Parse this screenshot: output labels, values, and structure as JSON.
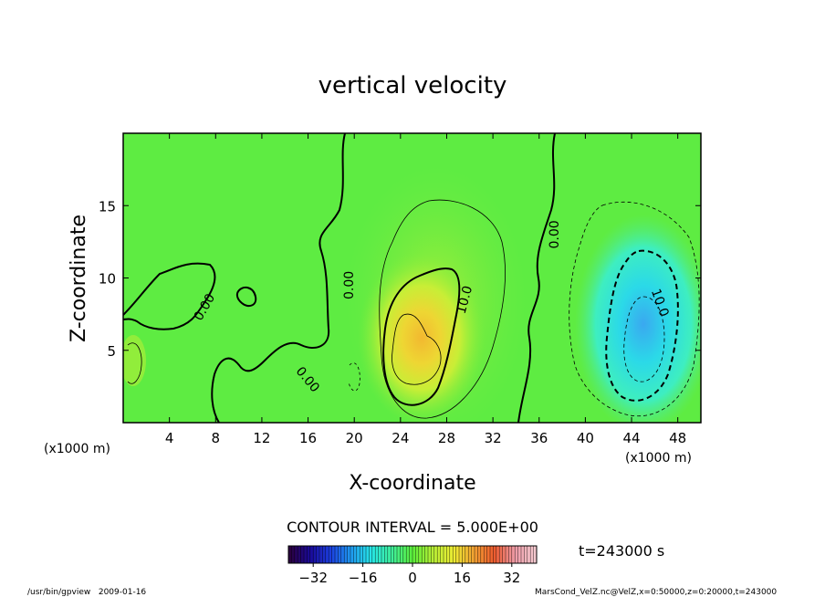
{
  "chart_data": {
    "type": "heatmap",
    "title": "vertical velocity",
    "xlabel": "X-coordinate",
    "ylabel": "Z-coordinate",
    "x_unit_left": "(x1000 m)",
    "x_unit_right": "(x1000 m)",
    "xlim": [
      0,
      50
    ],
    "ylim": [
      0,
      20
    ],
    "x_ticks": [
      4,
      8,
      12,
      16,
      20,
      24,
      28,
      32,
      36,
      40,
      44,
      48
    ],
    "y_ticks": [
      5,
      10,
      15
    ],
    "contour_interval_text": "CONTOUR INTERVAL = 5.000E+00",
    "time_text": "t=243000 s",
    "colorbar": {
      "range": [
        -40,
        40
      ],
      "ticks": [
        -32,
        -16,
        0,
        16,
        32
      ],
      "colors": [
        "#2a003f",
        "#1a0a9a",
        "#1b3fe0",
        "#1f9af0",
        "#27e7e6",
        "#3fef9a",
        "#5bee3a",
        "#b7ee35",
        "#eeee33",
        "#f2a232",
        "#ee5a2e",
        "#ee9aa6",
        "#f4c9cf"
      ]
    },
    "contour_labels": [
      {
        "text": "0.00",
        "x": 7.0,
        "z": 8.0,
        "angle": -60
      },
      {
        "text": "0.00",
        "x": 16.0,
        "z": 3.0,
        "angle": 50
      },
      {
        "text": "0.00",
        "x": 19.5,
        "z": 9.5,
        "angle": -90
      },
      {
        "text": "10.0",
        "x": 29.5,
        "z": 8.5,
        "angle": -75
      },
      {
        "text": "0.00",
        "x": 37.3,
        "z": 13.0,
        "angle": -90
      },
      {
        "text": "10.0",
        "x": 46.5,
        "z": 8.3,
        "angle": 70
      }
    ],
    "features": [
      {
        "name": "updraft",
        "center_x": 25.5,
        "center_z": 5.0,
        "peak_value": 22
      },
      {
        "name": "downdraft",
        "center_x": 44.5,
        "center_z": 5.5,
        "peak_value": -18
      }
    ],
    "footer_left": "/usr/bin/gpview   2009-01-16",
    "footer_right": "MarsCond_VelZ.nc@VelZ,x=0:50000,z=0:20000,t=243000"
  }
}
